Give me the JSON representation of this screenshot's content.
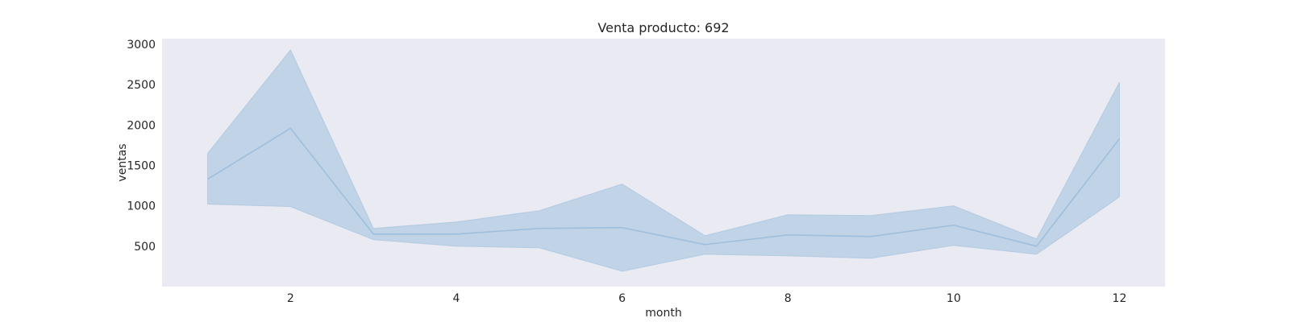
{
  "chart_data": {
    "type": "line",
    "title": "Venta producto: 692",
    "xlabel": "month",
    "ylabel": "ventas",
    "xlim": [
      0.45,
      12.55
    ],
    "ylim": [
      0,
      3070
    ],
    "xticks": [
      2,
      4,
      6,
      8,
      10,
      12
    ],
    "yticks": [
      500,
      1000,
      1500,
      2000,
      2500,
      3000
    ],
    "grid": false,
    "background": "#eaeaf2",
    "line_color": "#9ebfdd",
    "band_color": "#b3cbe2",
    "series": [
      {
        "x": [
          1,
          2,
          3,
          4,
          5,
          6,
          7,
          8,
          9,
          10,
          11,
          12
        ],
        "values": [
          1330,
          1960,
          650,
          650,
          720,
          730,
          520,
          640,
          620,
          760,
          500,
          1830
        ],
        "upper": [
          1650,
          2930,
          720,
          800,
          940,
          1270,
          630,
          890,
          880,
          1000,
          590,
          2530
        ],
        "lower": [
          1020,
          990,
          580,
          500,
          480,
          190,
          400,
          380,
          350,
          510,
          400,
          1110
        ]
      }
    ]
  }
}
